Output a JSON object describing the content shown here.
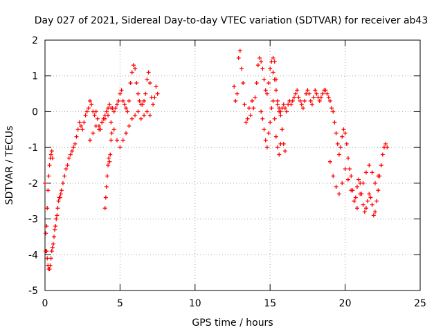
{
  "chart_data": {
    "type": "scatter",
    "title": "Day 027 of 2021, Sidereal Day-to-day VTEC variation (SDTVAR) for receiver ab43",
    "xlabel": "GPS time / hours",
    "ylabel": "SDTVAR / TECUs",
    "xlim": [
      0,
      25
    ],
    "ylim": [
      -5,
      2
    ],
    "xticks": [
      0,
      5,
      10,
      15,
      20,
      25
    ],
    "yticks": [
      -5,
      -4,
      -3,
      -2,
      -1,
      0,
      1,
      2
    ],
    "grid": true,
    "marker": "+",
    "color": "#ff0000",
    "series": [
      {
        "name": "ab43",
        "x": [
          0.0,
          0.05,
          0.1,
          0.15,
          0.2,
          0.25,
          0.3,
          0.35,
          0.4,
          0.45,
          0.5,
          0.55,
          0.6,
          0.65,
          0.7,
          0.75,
          0.8,
          0.85,
          0.9,
          0.95,
          1.0,
          1.05,
          1.1,
          1.2,
          1.3,
          1.4,
          1.5,
          1.6,
          1.7,
          1.8,
          1.9,
          2.0,
          2.1,
          2.2,
          2.3,
          2.4,
          2.5,
          2.6,
          2.7,
          2.8,
          2.9,
          3.0,
          3.1,
          3.2,
          3.3,
          3.4,
          3.5,
          3.6,
          3.7,
          3.8,
          3.9,
          4.0,
          4.1,
          4.2,
          4.3,
          4.4,
          4.5,
          4.6,
          4.7,
          4.8,
          4.9,
          5.0,
          5.1,
          5.2,
          5.3,
          5.4,
          5.5,
          5.6,
          5.7,
          5.8,
          5.9,
          6.0,
          6.1,
          6.2,
          6.3,
          6.4,
          6.5,
          6.6,
          6.7,
          6.8,
          6.9,
          7.0,
          7.1,
          7.2,
          7.3,
          7.4,
          7.5,
          0.05,
          0.1,
          0.15,
          0.2,
          0.25,
          0.3,
          0.35,
          0.4,
          0.45,
          0.5,
          4.0,
          4.05,
          4.1,
          4.15,
          4.2,
          4.25,
          4.3,
          4.35,
          4.4,
          4.45,
          3.0,
          3.2,
          3.4,
          3.6,
          3.8,
          4.0,
          4.2,
          4.4,
          4.6,
          4.8,
          5.0,
          5.2,
          5.4,
          5.6,
          5.8,
          6.0,
          6.2,
          6.4,
          6.6,
          6.8,
          7.0,
          12.6,
          12.7,
          12.8,
          12.9,
          13.0,
          13.1,
          13.2,
          13.3,
          13.4,
          13.5,
          13.6,
          13.7,
          13.8,
          13.9,
          14.0,
          14.1,
          14.2,
          14.3,
          14.4,
          14.5,
          14.6,
          14.7,
          14.8,
          14.9,
          15.0,
          15.1,
          15.2,
          15.3,
          15.4,
          15.5,
          15.6,
          15.7,
          15.8,
          15.9,
          16.0,
          16.1,
          16.2,
          16.3,
          16.4,
          16.5,
          16.6,
          16.7,
          16.8,
          16.9,
          17.0,
          17.1,
          17.2,
          17.3,
          17.4,
          17.5,
          17.6,
          17.7,
          17.8,
          17.9,
          18.0,
          18.1,
          18.2,
          18.3,
          18.4,
          18.5,
          18.6,
          18.7,
          18.8,
          18.9,
          19.0,
          19.1,
          19.2,
          19.3,
          19.4,
          19.5,
          19.6,
          19.7,
          19.8,
          19.9,
          20.0,
          20.1,
          20.2,
          20.3,
          20.4,
          20.5,
          20.6,
          20.7,
          20.8,
          20.9,
          21.0,
          21.1,
          21.2,
          21.3,
          21.4,
          21.5,
          21.6,
          21.7,
          21.8,
          21.9,
          22.0,
          22.1,
          22.2,
          22.3,
          22.4,
          22.5,
          22.6,
          22.7,
          22.8,
          14.4,
          14.5,
          14.6,
          14.7,
          14.8,
          14.9,
          15.0,
          15.1,
          15.2,
          15.3,
          15.4,
          15.5,
          15.6,
          15.7,
          15.8,
          15.2,
          15.3,
          15.4,
          15.5,
          15.6,
          15.7,
          15.8,
          15.9,
          16.0,
          19.0,
          19.2,
          19.4,
          19.6,
          19.8,
          20.0,
          20.2,
          20.4,
          20.6,
          20.8,
          21.0,
          21.2,
          21.4,
          21.6,
          21.8,
          22.0,
          22.2,
          22.4
        ],
        "y": [
          -2.0,
          -3.4,
          -3.9,
          -4.1,
          -4.3,
          -4.4,
          -4.4,
          -4.3,
          -4.1,
          -3.9,
          -3.8,
          -3.7,
          -3.5,
          -3.3,
          -3.2,
          -3.0,
          -2.9,
          -2.7,
          -2.5,
          -2.4,
          -2.4,
          -2.3,
          -2.2,
          -2.0,
          -1.8,
          -1.6,
          -1.5,
          -1.3,
          -1.2,
          -1.1,
          -1.0,
          -0.9,
          -0.7,
          -0.5,
          -0.3,
          -0.4,
          -0.5,
          -0.3,
          -0.1,
          0.0,
          0.1,
          0.3,
          0.2,
          0.0,
          -0.1,
          0.0,
          -0.2,
          -0.4,
          -0.5,
          -0.3,
          -0.2,
          -0.1,
          0.0,
          0.1,
          0.2,
          0.1,
          0.1,
          0.0,
          0.1,
          0.2,
          0.3,
          0.5,
          0.6,
          0.3,
          0.2,
          0.1,
          0.0,
          0.3,
          0.8,
          1.1,
          1.3,
          1.2,
          0.8,
          0.5,
          0.3,
          0.2,
          0.2,
          0.3,
          0.5,
          0.9,
          1.1,
          0.8,
          0.4,
          0.2,
          0.4,
          0.7,
          0.5,
          -3.9,
          -3.2,
          -2.7,
          -2.2,
          -1.8,
          -1.5,
          -1.3,
          -1.2,
          -1.1,
          -1.3,
          -2.7,
          -2.4,
          -2.1,
          -1.8,
          -1.5,
          -1.3,
          -1.4,
          -1.2,
          -0.8,
          -0.6,
          -0.8,
          -0.6,
          -0.4,
          -0.5,
          -0.3,
          -0.2,
          -0.1,
          -0.3,
          -0.5,
          -0.8,
          -1.0,
          -0.8,
          -0.6,
          -0.4,
          -0.2,
          -0.1,
          0.0,
          -0.2,
          -0.1,
          0.0,
          -0.1,
          0.7,
          0.3,
          0.5,
          1.5,
          1.7,
          1.2,
          0.8,
          0.2,
          -0.3,
          -0.2,
          0.1,
          -0.1,
          0.3,
          0.1,
          0.4,
          0.8,
          1.3,
          1.5,
          1.4,
          1.2,
          0.9,
          0.6,
          0.5,
          0.8,
          1.2,
          1.4,
          1.5,
          1.4,
          0.9,
          0.2,
          0.0,
          0.0,
          0.1,
          0.2,
          0.1,
          0.0,
          0.2,
          0.3,
          0.2,
          0.3,
          0.4,
          0.5,
          0.6,
          0.4,
          0.3,
          0.2,
          0.1,
          0.3,
          0.5,
          0.6,
          0.5,
          0.3,
          0.2,
          0.4,
          0.6,
          0.5,
          0.4,
          0.3,
          0.4,
          0.5,
          0.6,
          0.6,
          0.5,
          0.4,
          0.3,
          0.1,
          0.0,
          -0.3,
          -0.6,
          -0.9,
          -1.2,
          -1.0,
          -0.7,
          -0.5,
          -0.6,
          -0.9,
          -1.3,
          -1.6,
          -1.8,
          -2.2,
          -2.5,
          -2.4,
          -2.1,
          -1.9,
          -2.0,
          -2.3,
          -2.6,
          -2.8,
          -2.7,
          -2.5,
          -2.3,
          -2.4,
          -2.6,
          -2.9,
          -2.8,
          -2.5,
          -2.2,
          -1.8,
          -1.5,
          -1.2,
          -1.0,
          -0.9,
          -1.0,
          0.0,
          -0.2,
          -0.5,
          -0.8,
          -1.0,
          -0.6,
          -0.3,
          0.1,
          0.3,
          -0.2,
          -0.7,
          -1.0,
          -1.2,
          -0.9,
          -0.5,
          1.1,
          0.9,
          0.6,
          0.3,
          0.1,
          -0.1,
          -0.5,
          -0.9,
          -1.1,
          -1.4,
          -1.8,
          -2.1,
          -2.3,
          -2.0,
          -1.6,
          -1.9,
          -2.2,
          -2.5,
          -2.7,
          -2.3,
          -2.0,
          -1.7,
          -1.5,
          -1.7,
          -2.0,
          -1.8,
          -1.5
        ]
      }
    ]
  }
}
